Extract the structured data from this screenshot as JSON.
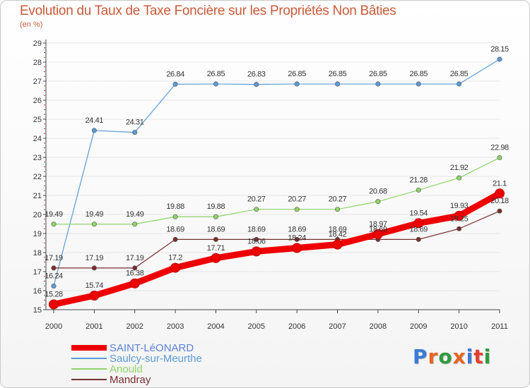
{
  "header": {
    "title": "Evolution du Taux de Taxe Foncière sur les Propriétés Non Bâties",
    "unit": "(en %)"
  },
  "logo": {
    "text": "Proxiti",
    "colors": [
      "#3a7bd5",
      "#e8641e",
      "#2e9c3e",
      "#e8641e",
      "#3a7bd5",
      "#e83e2e",
      "#2e9c3e"
    ]
  },
  "colors": {
    "title": "#c85a3a",
    "axis": "#444444",
    "grid": "#e6e6e6",
    "tick_red": "#d03030"
  },
  "chart_data": {
    "type": "line",
    "title": "Evolution du Taux de Taxe Foncière sur les Propriétés Non Bâties",
    "ylabel": "(en %)",
    "xlabel": "",
    "ylim": [
      15,
      29
    ],
    "yticks": [
      "15",
      "16",
      "17",
      "18",
      "19",
      "20",
      "21",
      "22",
      "23",
      "24",
      "25",
      "26",
      "27",
      "28",
      "29"
    ],
    "categories": [
      "2000",
      "2001",
      "2002",
      "2003",
      "2004",
      "2005",
      "2006",
      "2007",
      "2008",
      "2009",
      "2010",
      "2011"
    ],
    "legend_position": "bottom-left",
    "series": [
      {
        "name": "Saulcy-sur-Meurthe",
        "color": "#5b9bd5",
        "width": 1.2,
        "values": [
          16.24,
          24.41,
          24.31,
          26.84,
          26.85,
          26.83,
          26.85,
          26.85,
          26.85,
          26.85,
          26.85,
          28.15
        ],
        "labels": [
          "16.24",
          "24.41",
          "24.31",
          "26.84",
          "26.85",
          "26.83",
          "26.85",
          "26.85",
          "26.85",
          "26.85",
          "26.85",
          "28.15"
        ]
      },
      {
        "name": "Anould",
        "color": "#8fd468",
        "width": 1.2,
        "values": [
          19.49,
          19.49,
          19.49,
          19.88,
          19.88,
          20.27,
          20.27,
          20.27,
          20.68,
          21.28,
          21.92,
          22.98
        ],
        "labels": [
          "19.49",
          "19.49",
          "19.49",
          "19.88",
          "19.88",
          "20.27",
          "20.27",
          "20.27",
          "20.68",
          "21.28",
          "21.92",
          "22.98"
        ]
      },
      {
        "name": "Mandray",
        "color": "#7a2e2e",
        "width": 1.2,
        "values": [
          17.19,
          17.19,
          17.19,
          18.69,
          18.69,
          18.69,
          18.69,
          18.69,
          18.69,
          18.69,
          19.25,
          20.18
        ],
        "labels": [
          "17.19",
          "17.19",
          "17.19",
          "18.69",
          "18.69",
          "18.69",
          "18.69",
          "18.69",
          "18.69",
          "18.69",
          "19.25",
          "20.18"
        ]
      },
      {
        "name": "SAINT-LéONARD",
        "color": "#ee0000",
        "width": 9,
        "values": [
          15.28,
          15.74,
          16.38,
          17.2,
          17.71,
          18.06,
          18.24,
          18.42,
          18.97,
          19.54,
          19.93,
          21.1
        ],
        "labels": [
          "15.28",
          "15.74",
          "16.38",
          "17.2",
          "17.71",
          "18.06",
          "18.24",
          "18.42",
          "18.97",
          "19.54",
          "19.93",
          "21.1"
        ]
      }
    ]
  },
  "legend": [
    {
      "name": "SAINT-LéONARD",
      "color": "#ee0000",
      "width": 8
    },
    {
      "name": "Saulcy-sur-Meurthe",
      "color": "#5b9bd5",
      "width": 1.5
    },
    {
      "name": "Anould",
      "color": "#8fd468",
      "width": 1.5
    },
    {
      "name": "Mandray",
      "color": "#7a2e2e",
      "width": 1.5
    }
  ]
}
